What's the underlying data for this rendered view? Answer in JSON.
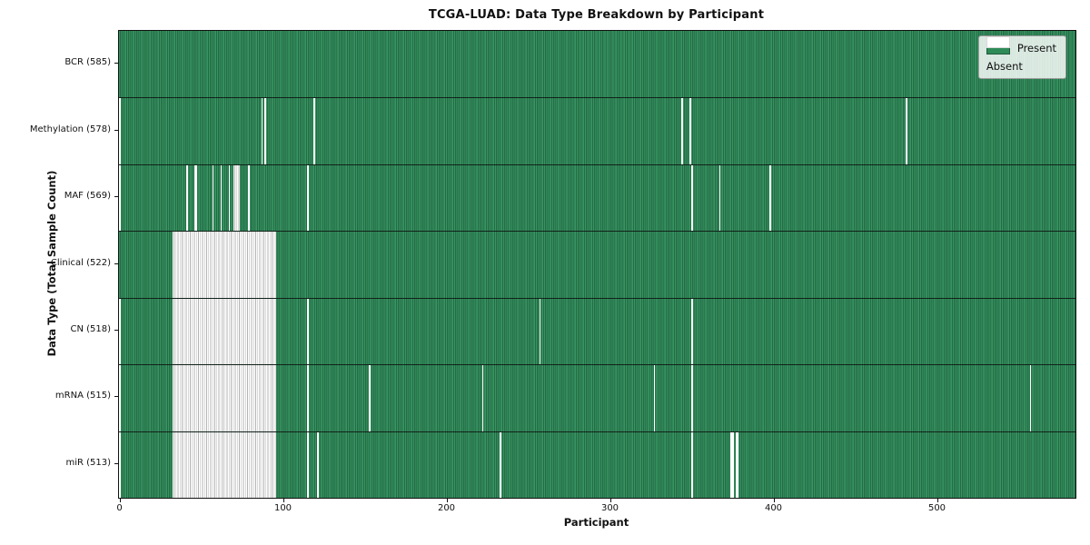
{
  "title": "TCGA-LUAD: Data Type Breakdown by Participant",
  "chart_data": {
    "type": "heatmap",
    "title": "TCGA-LUAD: Data Type Breakdown by Participant",
    "xlabel": "Participant",
    "ylabel": "Data Type (Total Sample Count)",
    "x_ticks": [
      0,
      100,
      200,
      300,
      400,
      500
    ],
    "x_range": [
      0,
      585
    ],
    "n_participants": 585,
    "grid": false,
    "legend_position": "upper right",
    "legend": [
      {
        "label": "Present",
        "color": "#2e8b57",
        "swatch": "present"
      },
      {
        "label": "Absent",
        "color": "#ffffff",
        "swatch": "absent"
      }
    ],
    "colors": {
      "present_fill": "#2e8b57",
      "present_edge": "#1d5c3a",
      "absent_fill": "#ffffff",
      "absent_edge": "#b3b3b3",
      "spine": "#111111"
    },
    "rows": [
      {
        "key": "bcr",
        "label": "BCR (585)",
        "count": 585,
        "absent_ranges": []
      },
      {
        "key": "methylation",
        "label": "Methylation (578)",
        "count": 578,
        "absent_ranges": [
          [
            0,
            0
          ],
          [
            87,
            87
          ],
          [
            89,
            89
          ],
          [
            119,
            119
          ],
          [
            344,
            344
          ],
          [
            349,
            349
          ],
          [
            481,
            481
          ]
        ]
      },
      {
        "key": "maf",
        "label": "MAF (569)",
        "count": 569,
        "absent_ranges": [
          [
            0,
            0
          ],
          [
            41,
            41
          ],
          [
            46,
            47
          ],
          [
            57,
            57
          ],
          [
            62,
            62
          ],
          [
            67,
            67
          ],
          [
            70,
            73
          ],
          [
            79,
            79
          ],
          [
            115,
            115
          ],
          [
            350,
            350
          ],
          [
            367,
            367
          ],
          [
            398,
            398
          ]
        ]
      },
      {
        "key": "clinical",
        "label": "Clinical (522)",
        "count": 522,
        "absent_ranges": [
          [
            33,
            95
          ]
        ]
      },
      {
        "key": "cn",
        "label": "CN (518)",
        "count": 518,
        "absent_ranges": [
          [
            0,
            0
          ],
          [
            33,
            95
          ],
          [
            115,
            115
          ],
          [
            257,
            257
          ],
          [
            350,
            350
          ]
        ]
      },
      {
        "key": "mrna",
        "label": "mRNA (515)",
        "count": 515,
        "absent_ranges": [
          [
            0,
            0
          ],
          [
            33,
            95
          ],
          [
            115,
            115
          ],
          [
            153,
            153
          ],
          [
            222,
            222
          ],
          [
            327,
            327
          ],
          [
            350,
            350
          ],
          [
            557,
            557
          ]
        ]
      },
      {
        "key": "mir",
        "label": "miR (513)",
        "count": 513,
        "absent_ranges": [
          [
            0,
            0
          ],
          [
            33,
            95
          ],
          [
            115,
            115
          ],
          [
            121,
            121
          ],
          [
            233,
            233
          ],
          [
            350,
            350
          ],
          [
            374,
            375
          ],
          [
            377,
            378
          ]
        ]
      }
    ]
  }
}
